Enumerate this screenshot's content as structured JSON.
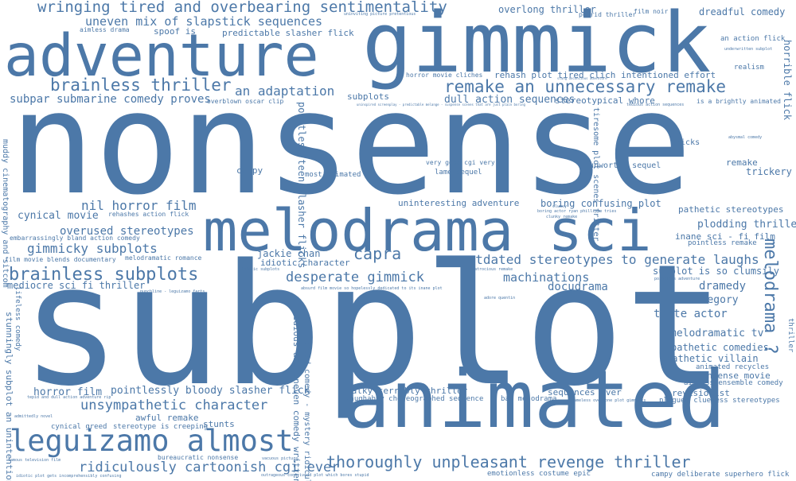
{
  "palette": {
    "text": "#4c78a8",
    "background": "#ffffff"
  },
  "words": [
    {
      "id": "nonsense",
      "text": "nonsense"
    },
    {
      "id": "subplot",
      "text": "subplot"
    },
    {
      "id": "gimmick",
      "text": "gimmick"
    },
    {
      "id": "adventure",
      "text": "adventure"
    },
    {
      "id": "animated",
      "text": "animated"
    },
    {
      "id": "melodrama-sci",
      "text": "melodrama sci"
    },
    {
      "id": "leguizamo-almost",
      "text": "leguizamo almost"
    },
    {
      "id": "wringing",
      "text": "wringing tired and overbearing sentimentality"
    },
    {
      "id": "brainless-thriller",
      "text": "brainless thriller"
    },
    {
      "id": "remake-unnecessary",
      "text": "remake an unnecessary remake"
    },
    {
      "id": "uneven-mix",
      "text": "uneven mix of slapstick sequences"
    },
    {
      "id": "an-adaptation",
      "text": "an adaptation"
    },
    {
      "id": "subpar-submarine",
      "text": "subpar submarine comedy proves"
    },
    {
      "id": "nil-horror",
      "text": "nil horror film"
    },
    {
      "id": "cynical-movie",
      "text": "cynical movie"
    },
    {
      "id": "overused-stereotypes",
      "text": "overused stereotypes"
    },
    {
      "id": "gimmicky-subplots",
      "text": "gimmicky subplots"
    },
    {
      "id": "brainless-subplots",
      "text": "brainless subplots"
    },
    {
      "id": "mediocre-sci-fi",
      "text": "mediocre sci fi thriller"
    },
    {
      "id": "capra",
      "text": "capra"
    },
    {
      "id": "desperate-gimmick",
      "text": "desperate gimmick"
    },
    {
      "id": "outdated-stereotypes",
      "text": "outdated stereotypes to generate laughs"
    },
    {
      "id": "machinations",
      "text": "machinations"
    },
    {
      "id": "docudrama",
      "text": "docudrama"
    },
    {
      "id": "unsympathetic-character",
      "text": "unsympathetic character"
    },
    {
      "id": "thoroughly-unpleasant",
      "text": "thoroughly unpleasant revenge thriller"
    },
    {
      "id": "ridiculously-cartoonish",
      "text": "ridiculously cartoonish cgi ever"
    },
    {
      "id": "horror-film",
      "text": "horror film"
    },
    {
      "id": "pointlessly-bloody",
      "text": "pointlessly bloody slasher flick"
    },
    {
      "id": "overlong-thriller",
      "text": "overlong thriller"
    },
    {
      "id": "dreadful-comedy",
      "text": "dreadful comedy"
    },
    {
      "id": "predictable-slasher",
      "text": "predictable slasher flick"
    },
    {
      "id": "spoof-is",
      "text": "spoof is"
    },
    {
      "id": "rehash-plot",
      "text": "rehash plot tired clich intentioned effort"
    },
    {
      "id": "dull-action",
      "text": "dull action sequences"
    },
    {
      "id": "stereotypical-whore",
      "text": "stereotypical whore"
    },
    {
      "id": "subplots-small",
      "text": "subplots"
    },
    {
      "id": "melodrama-vertical",
      "text": "melodrama ?"
    },
    {
      "id": "campy",
      "text": "campy"
    },
    {
      "id": "most-animated",
      "text": "most animated"
    },
    {
      "id": "lame-sequel",
      "text": "lame sequel"
    },
    {
      "id": "very-good-cgi",
      "text": "very good cgi very"
    },
    {
      "id": "unworthy-sequel",
      "text": "unworthy sequel"
    },
    {
      "id": "tricks",
      "text": "tricks"
    },
    {
      "id": "remake-small",
      "text": "remake"
    },
    {
      "id": "trickery",
      "text": "trickery"
    },
    {
      "id": "uninteresting-adventure",
      "text": "uninteresting adventure"
    },
    {
      "id": "boring-confusing",
      "text": "boring confusing plot"
    },
    {
      "id": "pathetic-stereotypes",
      "text": "pathetic stereotypes"
    },
    {
      "id": "plodding-thriller",
      "text": "plodding thriller"
    },
    {
      "id": "inane-sci-fi",
      "text": "inane sci - fi film"
    },
    {
      "id": "pointless-remake",
      "text": "pointless remake"
    },
    {
      "id": "jackie-chan",
      "text": "jackie chan"
    },
    {
      "id": "idiotic-character",
      "text": "idiotic character"
    },
    {
      "id": "subplot-clumsily",
      "text": "subplot is so clumsily"
    },
    {
      "id": "dramedy",
      "text": "dramedy"
    },
    {
      "id": "allegory",
      "text": "allegory"
    },
    {
      "id": "trite-actor",
      "text": "trite actor"
    },
    {
      "id": "melodramatic-tv",
      "text": "melodramatic tv"
    },
    {
      "id": "pathetic-comedies",
      "text": "pathetic comedies"
    },
    {
      "id": "pathetic-villain",
      "text": "pathetic villain"
    },
    {
      "id": "animated-recycles",
      "text": "animated recycles"
    },
    {
      "id": "nonsense-movie",
      "text": "nonsense movie"
    },
    {
      "id": "aimless-ensemble",
      "text": "aimless ensemble comedy"
    },
    {
      "id": "revisionist",
      "text": "revisionist"
    },
    {
      "id": "plagued-clueless",
      "text": "plagued clueless stereotypes"
    },
    {
      "id": "talky-terribly",
      "text": "talky terribly thriller"
    },
    {
      "id": "laughably-choreographed",
      "text": "laughably choreographed sequence"
    },
    {
      "id": "bad-melodrama",
      "text": "bad melodrama"
    },
    {
      "id": "sequences-ever",
      "text": "sequences ever"
    },
    {
      "id": "emotionless-costume",
      "text": "emotionless costume epic"
    },
    {
      "id": "campy-deliberate",
      "text": "campy deliberate superhero flick"
    },
    {
      "id": "awful-remake",
      "text": "awful remake"
    },
    {
      "id": "stereotype-creeping",
      "text": "stereotype is creeping"
    },
    {
      "id": "cynical-greed",
      "text": "cynical greed"
    },
    {
      "id": "stunts",
      "text": "stunts"
    },
    {
      "id": "bureaucratic-nonsense",
      "text": "bureaucratic nonsense"
    },
    {
      "id": "melodramatic-romance",
      "text": "melodramatic romance"
    },
    {
      "id": "rehashes-action",
      "text": "rehashes action flick"
    },
    {
      "id": "embarrassingly-bland",
      "text": "embarrassingly bland action comedy"
    },
    {
      "id": "film-movie-blends",
      "text": "film movie blends documentary"
    },
    {
      "id": "an-action-flick",
      "text": "an action flick"
    },
    {
      "id": "realism",
      "text": "realism"
    },
    {
      "id": "brightly-animated",
      "text": "is a brightly animated"
    },
    {
      "id": "overblown-oscar",
      "text": "overblown oscar clip"
    },
    {
      "id": "film-noir",
      "text": "film noir"
    },
    {
      "id": "putrid-thriller",
      "text": "putrid thriller"
    },
    {
      "id": "horror-cliches",
      "text": "horror movie cliches"
    },
    {
      "id": "aimless-drama",
      "text": "aimless drama"
    },
    {
      "id": "uninviting",
      "text": "uninviting picture pretentious"
    },
    {
      "id": "underwritten-subplot",
      "text": "underwritten subplot"
    },
    {
      "id": "abysmal-comedy",
      "text": "abysmal comedy"
    },
    {
      "id": "pointless-adventure",
      "text": "pointless adventure"
    },
    {
      "id": "atrocious-remake",
      "text": "atrocious remake"
    },
    {
      "id": "absurd-film-movie",
      "text": "absurd film movie so hopelessly dedicated to its inane plot"
    },
    {
      "id": "adore-quentin",
      "text": "adore quentin"
    },
    {
      "id": "idiotic-subplots",
      "text": "idiotic subplots"
    },
    {
      "id": "punchline-leguizamo",
      "text": "punchline - leguizamo farts"
    },
    {
      "id": "clumsy",
      "text": "clumsy"
    },
    {
      "id": "clunky-remake",
      "text": "clunky remake"
    },
    {
      "id": "boring-actor",
      "text": "boring actor ryan phillippe tries"
    },
    {
      "id": "shameless-overdone",
      "text": "shameless overdone plot gimmicks"
    },
    {
      "id": "admittedly-novel",
      "text": "admittedly novel"
    },
    {
      "id": "vacuous-picture",
      "text": "vacuous picture"
    },
    {
      "id": "famous-television",
      "text": "famous television film"
    },
    {
      "id": "idiotic-plot-gets",
      "text": "idiotic plot gets incomprehensibly confusing"
    },
    {
      "id": "outrageous-contrived",
      "text": "outrageous contrivedd plot which bores stupid"
    },
    {
      "id": "tepid-dull",
      "text": "tepid and dull action adventure rip"
    },
    {
      "id": "uninspired-screenplay",
      "text": "uninspired screenplay - predictable melange - suspense scenes that are just plain boring"
    },
    {
      "id": "stung-unconcious",
      "text": "stung unconcious adventure"
    },
    {
      "id": "tedious-action",
      "text": "tedious action sequences"
    },
    {
      "id": "horrible-flick",
      "text": "horrible flick"
    },
    {
      "id": "pointless-teen",
      "text": "pointless teen slasher flicks"
    },
    {
      "id": "tiresome-plot",
      "text": "tiresome plot scenes fritter"
    },
    {
      "id": "muddy-cinematography",
      "text": "muddy cinematography and sitcom"
    },
    {
      "id": "stunningly-subplot",
      "text": "stunningly subplot an unintentional"
    },
    {
      "id": "lifeless-comedy",
      "text": "lifeless comedy"
    },
    {
      "id": "tedious-uneven",
      "text": "tedious and uneven comedy written"
    },
    {
      "id": "broad-comedy",
      "text": "broad comedy - mystery ridiculous"
    },
    {
      "id": "thriller-tiny",
      "text": "thriller"
    }
  ]
}
